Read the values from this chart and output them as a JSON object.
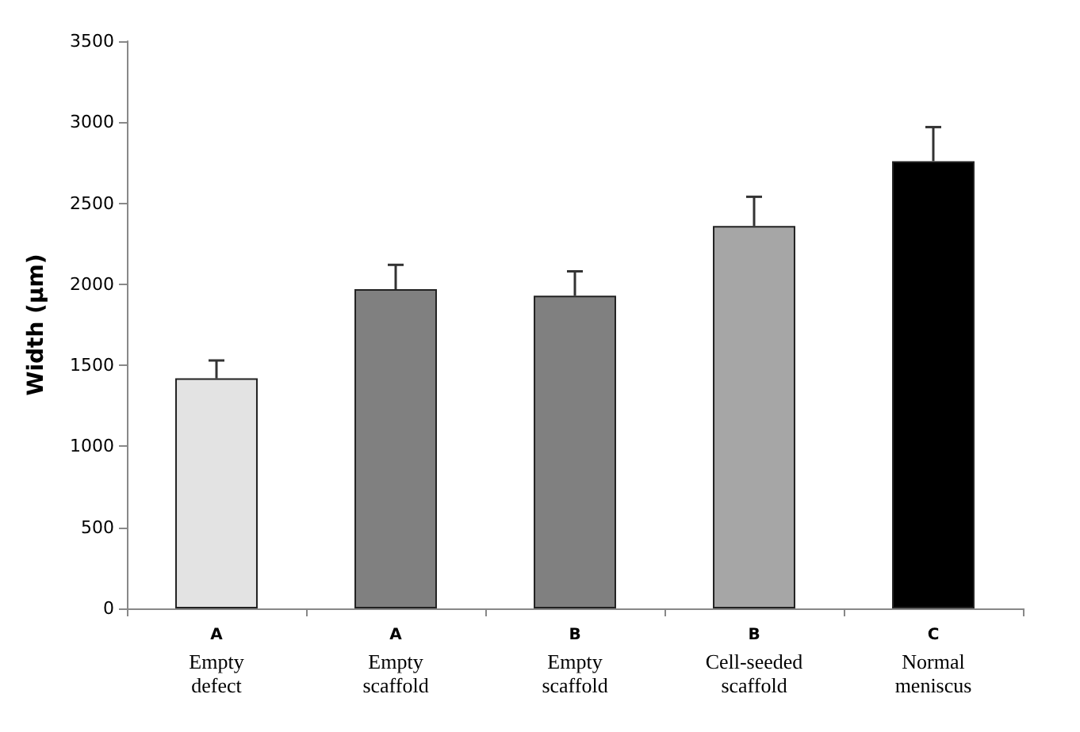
{
  "chart_data": {
    "type": "bar",
    "ylabel": "Width (µm)",
    "categories": [
      "A\nEmpty\ndefect",
      "A\nEmpty\nscaffold",
      "B\nEmpty\nscaffold",
      "B\nCell-seeded\nscaffold",
      "C\nNormal\nmeniscus"
    ],
    "values": [
      1420,
      1970,
      1930,
      2360,
      2760
    ],
    "colors": [
      "#e3e3e3",
      "#808080",
      "#808080",
      "#a6a6a6",
      "#000000"
    ],
    "errors": [
      [
        1420,
        1530
      ],
      [
        1970,
        2120
      ],
      [
        1930,
        2080
      ],
      [
        2360,
        2540
      ],
      [
        2760,
        2970
      ]
    ],
    "ylim": [
      0,
      3500
    ],
    "yticks": [
      0,
      500,
      1000,
      1500,
      2000,
      2500,
      3000,
      3500
    ],
    "grid": false
  }
}
